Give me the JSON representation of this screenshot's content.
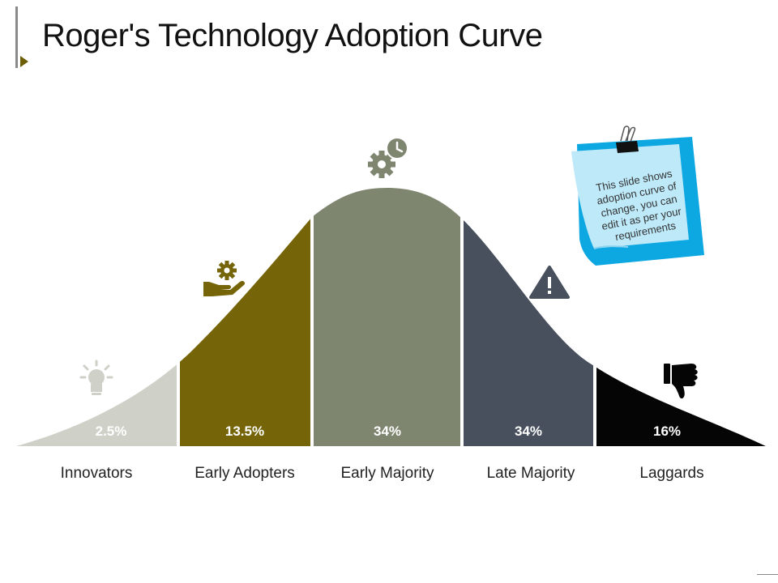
{
  "title": "Roger's Technology Adoption Curve",
  "segments": [
    {
      "label": "Innovators",
      "percent": "2.5%",
      "color": "#cfd1c8",
      "icon": "lightbulb-icon"
    },
    {
      "label": "Early Adopters",
      "percent": "13.5%",
      "color": "#756508",
      "icon": "gear-hand-icon"
    },
    {
      "label": "Early Majority",
      "percent": "34%",
      "color": "#7e8670",
      "icon": "gear-clock-icon"
    },
    {
      "label": "Late Majority",
      "percent": "34%",
      "color": "#48505e",
      "icon": "warning-icon"
    },
    {
      "label": "Laggards",
      "percent": "16%",
      "color": "#050505",
      "icon": "thumbs-down-icon"
    }
  ],
  "note": {
    "lines": [
      "This slide shows",
      "adoption curve of",
      "change, you can",
      "edit it as per your",
      "requirements"
    ]
  }
}
